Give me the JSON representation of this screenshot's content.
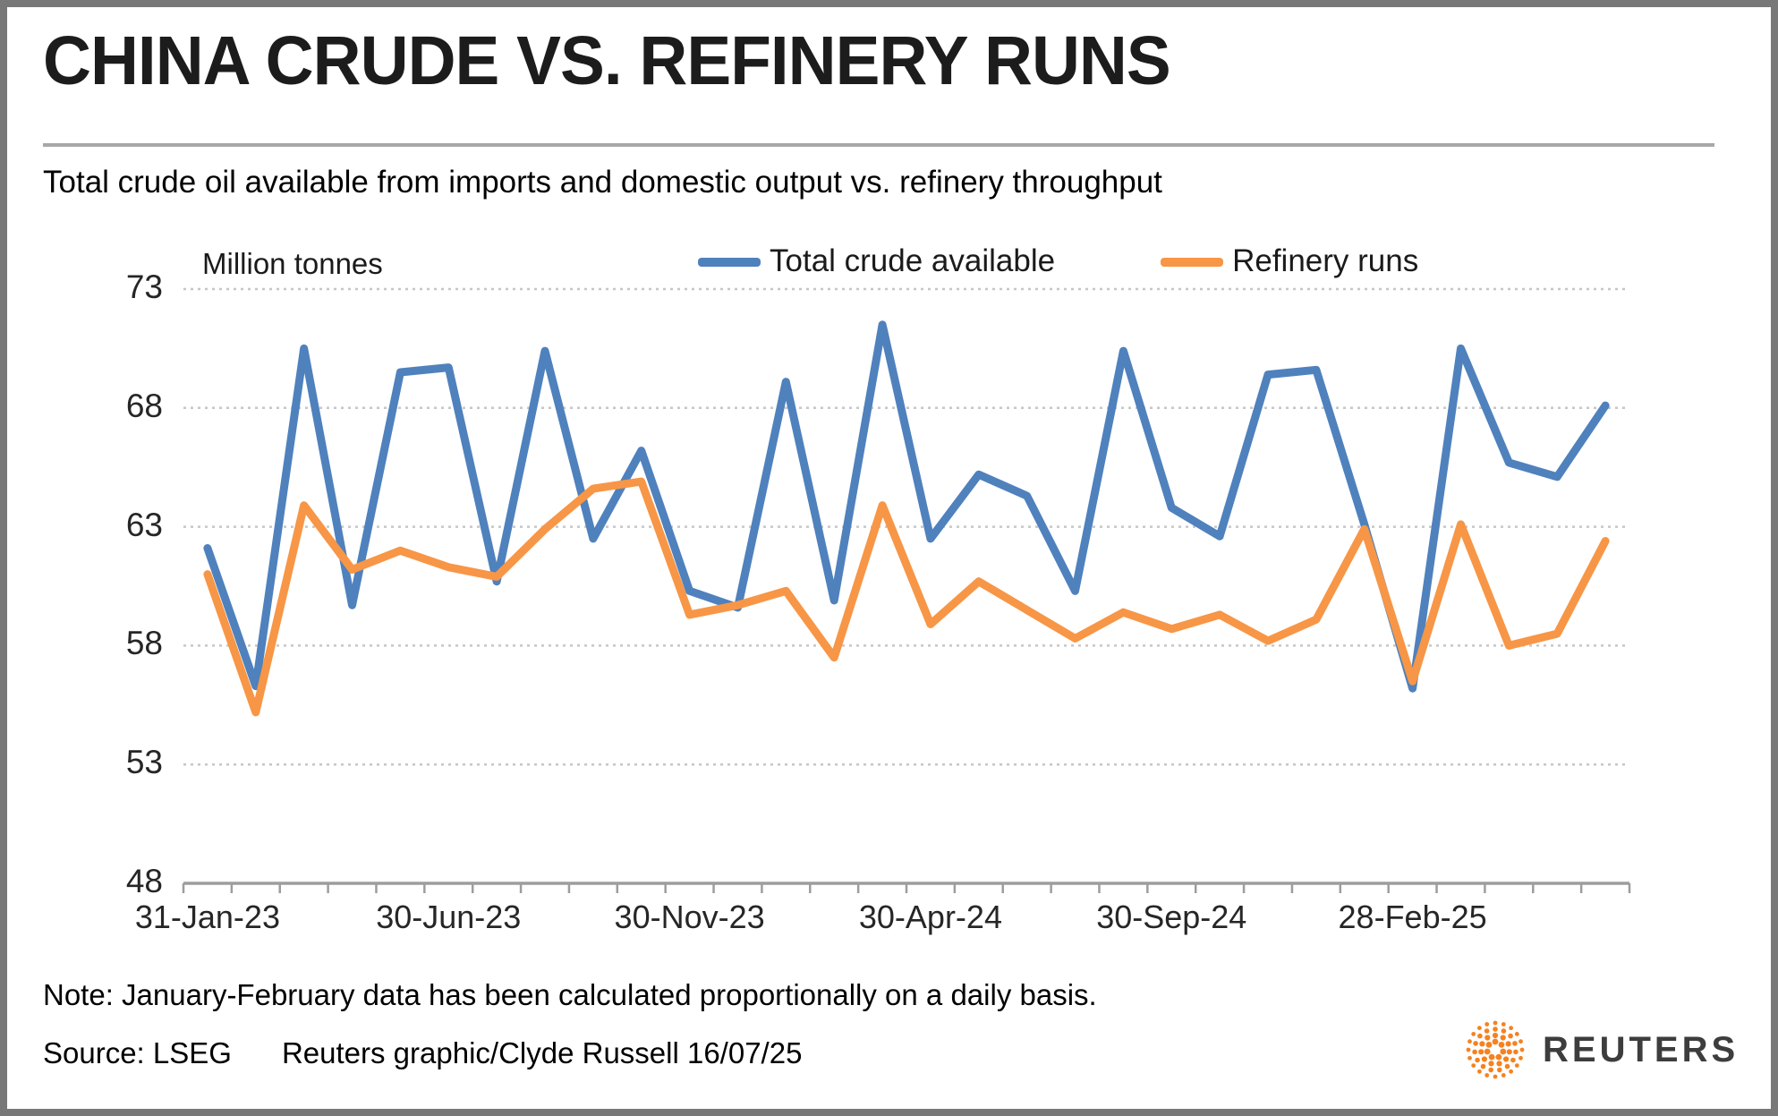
{
  "header": {
    "title": "CHINA CRUDE VS. REFINERY RUNS",
    "subtitle": "Total crude oil available from imports and domestic output vs. refinery throughput"
  },
  "legend": {
    "items": [
      {
        "label": "Total crude available",
        "color": "#4f81bd"
      },
      {
        "label": "Refinery runs",
        "color": "#f79646"
      }
    ]
  },
  "chart_data": {
    "type": "line",
    "title": "China crude vs. refinery runs",
    "unit_label": "Million tonnes",
    "x": [
      "Jan-23",
      "Feb-23",
      "Mar-23",
      "Apr-23",
      "May-23",
      "Jun-23",
      "Jul-23",
      "Aug-23",
      "Sep-23",
      "Oct-23",
      "Nov-23",
      "Dec-23",
      "Jan-24",
      "Feb-24",
      "Mar-24",
      "Apr-24",
      "May-24",
      "Jun-24",
      "Jul-24",
      "Aug-24",
      "Sep-24",
      "Oct-24",
      "Nov-24",
      "Dec-24",
      "Jan-25",
      "Feb-25",
      "Mar-25",
      "Apr-25",
      "May-25",
      "Jun-25"
    ],
    "series": [
      {
        "name": "Total crude available",
        "color": "#4f81bd",
        "values": [
          62.1,
          56.3,
          70.5,
          59.7,
          69.5,
          69.7,
          60.7,
          70.4,
          62.5,
          66.2,
          60.3,
          59.6,
          69.1,
          59.9,
          71.5,
          62.5,
          65.2,
          64.3,
          60.3,
          70.4,
          63.8,
          62.6,
          69.4,
          69.6,
          63.1,
          56.2,
          70.5,
          65.7,
          65.1,
          68.1
        ]
      },
      {
        "name": "Refinery runs",
        "color": "#f79646",
        "values": [
          61.0,
          55.2,
          63.9,
          61.2,
          62.0,
          61.3,
          60.9,
          62.9,
          64.6,
          64.9,
          59.3,
          59.7,
          60.3,
          57.5,
          63.9,
          58.9,
          60.7,
          59.5,
          58.3,
          59.4,
          58.7,
          59.3,
          58.2,
          59.1,
          62.9,
          56.5,
          63.1,
          58.0,
          58.5,
          62.4
        ]
      }
    ],
    "ylim": [
      48,
      73
    ],
    "y_ticks": [
      73,
      68,
      63,
      58,
      53,
      48
    ],
    "x_tick_labels": [
      {
        "index": 0,
        "label": "31-Jan-23"
      },
      {
        "index": 5,
        "label": "30-Jun-23"
      },
      {
        "index": 10,
        "label": "30-Nov-23"
      },
      {
        "index": 15,
        "label": "30-Apr-24"
      },
      {
        "index": 20,
        "label": "30-Sep-24"
      },
      {
        "index": 25,
        "label": "28-Feb-25"
      }
    ],
    "grid": "horizontal-dotted",
    "legend_position": "top"
  },
  "footer": {
    "note": "Note: January-February data has been calculated proportionally on a daily basis.",
    "source_label": "Source: LSEG",
    "credit": "Reuters graphic/Clyde Russell 16/07/25",
    "logo_text": "REUTERS",
    "logo_color": "#f58220"
  }
}
